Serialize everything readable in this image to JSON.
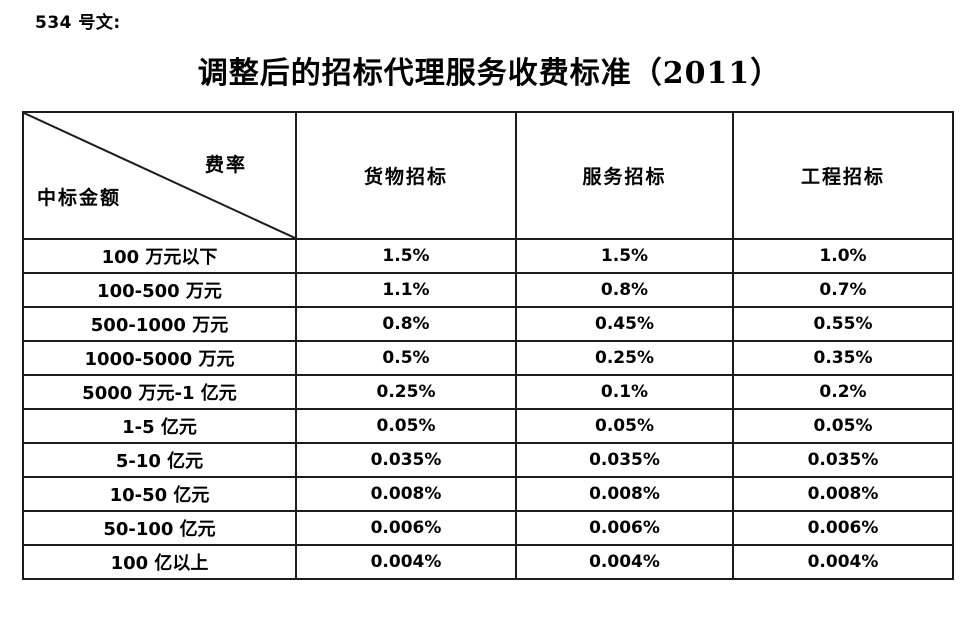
{
  "page": {
    "doc_label": "534 号文:",
    "title": "调整后的招标代理服务收费标准（2011）"
  },
  "table": {
    "corner": {
      "top_right": "费率",
      "bottom_left": "中标金额"
    },
    "columns": [
      "货物招标",
      "服务招标",
      "工程招标"
    ],
    "rows": [
      {
        "label": "100 万元以下",
        "values": [
          "1.5%",
          "1.5%",
          "1.0%"
        ]
      },
      {
        "label": "100-500 万元",
        "values": [
          "1.1%",
          "0.8%",
          "0.7%"
        ]
      },
      {
        "label": "500-1000 万元",
        "values": [
          "0.8%",
          "0.45%",
          "0.55%"
        ]
      },
      {
        "label": "1000-5000 万元",
        "values": [
          "0.5%",
          "0.25%",
          "0.35%"
        ]
      },
      {
        "label": "5000 万元-1 亿元",
        "values": [
          "0.25%",
          "0.1%",
          "0.2%"
        ]
      },
      {
        "label": "1-5 亿元",
        "values": [
          "0.05%",
          "0.05%",
          "0.05%"
        ]
      },
      {
        "label": "5-10 亿元",
        "values": [
          "0.035%",
          "0.035%",
          "0.035%"
        ]
      },
      {
        "label": "10-50 亿元",
        "values": [
          "0.008%",
          "0.008%",
          "0.008%"
        ]
      },
      {
        "label": "50-100 亿元",
        "values": [
          "0.006%",
          "0.006%",
          "0.006%"
        ]
      },
      {
        "label": "100 亿以上",
        "values": [
          "0.004%",
          "0.004%",
          "0.004%"
        ]
      }
    ]
  },
  "colors": {
    "background": "#ffffff",
    "text": "#000000",
    "border": "#1c1c1c"
  }
}
